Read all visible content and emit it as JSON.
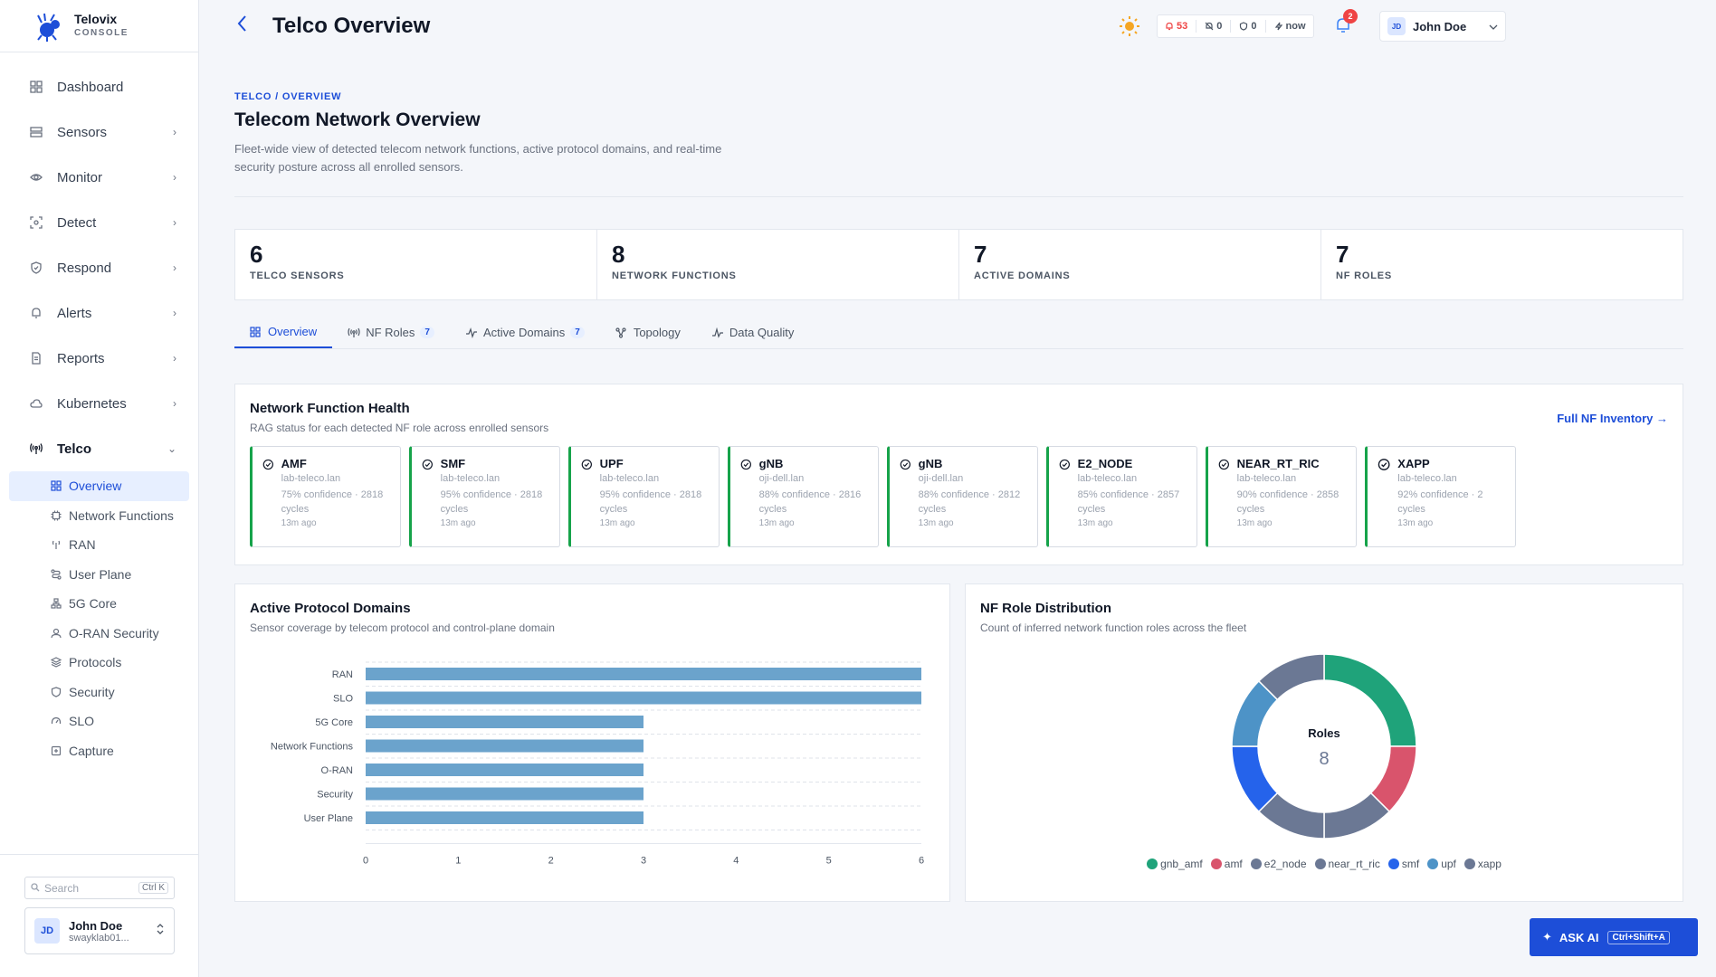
{
  "brand": {
    "name": "Telovix",
    "sub": "CONSOLE"
  },
  "sidebar": {
    "items": [
      {
        "label": "Dashboard",
        "icon": "dashboard-icon",
        "chevron": false
      },
      {
        "label": "Sensors",
        "icon": "server-icon",
        "chevron": true
      },
      {
        "label": "Monitor",
        "icon": "eye-icon",
        "chevron": true
      },
      {
        "label": "Detect",
        "icon": "scan-icon",
        "chevron": true
      },
      {
        "label": "Respond",
        "icon": "shield-icon",
        "chevron": true
      },
      {
        "label": "Alerts",
        "icon": "bell-icon",
        "chevron": true
      },
      {
        "label": "Reports",
        "icon": "document-icon",
        "chevron": true
      },
      {
        "label": "Kubernetes",
        "icon": "cloud-icon",
        "chevron": true
      },
      {
        "label": "Telco",
        "icon": "antenna-icon",
        "chevron": true
      }
    ],
    "telco_sub": [
      {
        "label": "Overview",
        "icon": "grid-icon",
        "active": true
      },
      {
        "label": "Network Functions",
        "icon": "chip-icon",
        "active": false
      },
      {
        "label": "RAN",
        "icon": "antenna-icon",
        "active": false
      },
      {
        "label": "User Plane",
        "icon": "route-icon",
        "active": false
      },
      {
        "label": "5G Core",
        "icon": "network-icon",
        "active": false
      },
      {
        "label": "O-RAN Security",
        "icon": "user-shield-icon",
        "active": false
      },
      {
        "label": "Protocols",
        "icon": "layers-icon",
        "active": false
      },
      {
        "label": "Security",
        "icon": "shield-icon",
        "active": false
      },
      {
        "label": "SLO",
        "icon": "gauge-icon",
        "active": false
      },
      {
        "label": "Capture",
        "icon": "capture-icon",
        "active": false
      }
    ],
    "search_placeholder": "Search",
    "search_kbd": "Ctrl K",
    "user": {
      "initials": "JD",
      "name": "John Doe",
      "sub": "swayklab01..."
    }
  },
  "topbar": {
    "title": "Telco Overview",
    "status": {
      "alerts": "53",
      "muted": "0",
      "shield": "0",
      "updated": "now"
    },
    "notif_count": "2",
    "user": {
      "initials": "JD",
      "name": "John Doe"
    }
  },
  "page": {
    "crumb": "TELCO / OVERVIEW",
    "heading": "Telecom Network Overview",
    "lead": "Fleet-wide view of detected telecom network functions, active protocol domains, and real-time security posture across all enrolled sensors."
  },
  "kpis": [
    {
      "value": "6",
      "label": "TELCO SENSORS"
    },
    {
      "value": "8",
      "label": "NETWORK FUNCTIONS"
    },
    {
      "value": "7",
      "label": "ACTIVE DOMAINS"
    },
    {
      "value": "7",
      "label": "NF ROLES"
    }
  ],
  "tabs": [
    {
      "label": "Overview",
      "badge": "",
      "icon": "grid-icon",
      "active": true
    },
    {
      "label": "NF Roles",
      "badge": "7",
      "icon": "antenna-icon",
      "active": false
    },
    {
      "label": "Active Domains",
      "badge": "7",
      "icon": "activity-icon",
      "active": false
    },
    {
      "label": "Topology",
      "badge": "",
      "icon": "topology-icon",
      "active": false
    },
    {
      "label": "Data Quality",
      "badge": "",
      "icon": "pulse-icon",
      "active": false
    }
  ],
  "nf_health": {
    "title": "Network Function Health",
    "subtitle": "RAG status for each detected NF role across enrolled sensors",
    "link": "Full NF Inventory →",
    "cards": [
      {
        "name": "AMF",
        "host": "lab-teleco.lan",
        "conf": "75% confidence · 2818 cycles",
        "age": "13m ago"
      },
      {
        "name": "SMF",
        "host": "lab-teleco.lan",
        "conf": "95% confidence · 2818 cycles",
        "age": "13m ago"
      },
      {
        "name": "UPF",
        "host": "lab-teleco.lan",
        "conf": "95% confidence · 2818 cycles",
        "age": "13m ago"
      },
      {
        "name": "gNB",
        "host": "oji-dell.lan",
        "conf": "88% confidence · 2816 cycles",
        "age": "13m ago"
      },
      {
        "name": "gNB",
        "host": "oji-dell.lan",
        "conf": "88% confidence · 2812 cycles",
        "age": "13m ago"
      },
      {
        "name": "E2_NODE",
        "host": "lab-teleco.lan",
        "conf": "85% confidence · 2857 cycles",
        "age": "13m ago"
      },
      {
        "name": "NEAR_RT_RIC",
        "host": "lab-teleco.lan",
        "conf": "90% confidence · 2858 cycles",
        "age": "13m ago"
      },
      {
        "name": "XAPP",
        "host": "lab-teleco.lan",
        "conf": "92% confidence · 2 cycles",
        "age": "13m ago"
      }
    ]
  },
  "protocol_domains": {
    "title": "Active Protocol Domains",
    "subtitle": "Sensor coverage by telecom protocol and control-plane domain"
  },
  "role_distribution": {
    "title": "NF Role Distribution",
    "subtitle": "Count of inferred network function roles across the fleet"
  },
  "chart_data": [
    {
      "type": "bar",
      "orientation": "horizontal",
      "categories": [
        "RAN",
        "SLO",
        "5G Core",
        "Network Functions",
        "O-RAN",
        "Security",
        "User Plane"
      ],
      "values": [
        6,
        6,
        3,
        3,
        3,
        3,
        3
      ],
      "xlim": [
        0,
        6
      ],
      "xticks": [
        "0",
        "1",
        "2",
        "3",
        "4",
        "5",
        "6"
      ],
      "grid": true,
      "color": "#6ba3cc"
    },
    {
      "type": "pie",
      "donut": true,
      "center_label": "Roles",
      "center_value": "8",
      "labels": [
        "gnb_amf",
        "amf",
        "e2_node",
        "near_rt_ric",
        "smf",
        "upf",
        "xapp"
      ],
      "values": [
        2,
        1,
        1,
        1,
        1,
        1,
        1
      ],
      "colors": [
        "#1fa37a",
        "#d9546c",
        "#6b7894",
        "#6b7894",
        "#2563eb",
        "#4d93c7",
        "#6b7894"
      ],
      "legend": "bottom"
    }
  ],
  "ask_ai": {
    "label": "ASK AI",
    "kbd": "Ctrl+Shift+A"
  }
}
